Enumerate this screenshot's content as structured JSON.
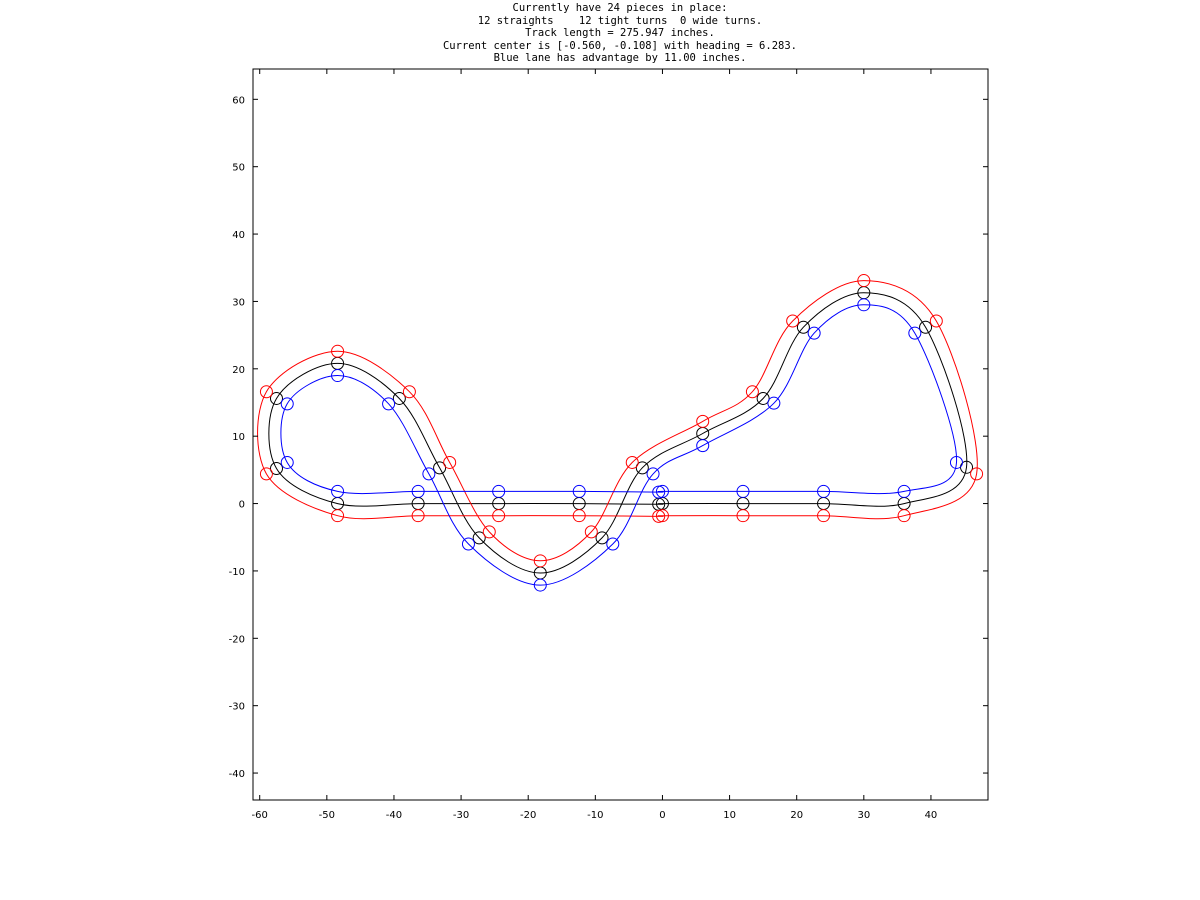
{
  "chart_data": {
    "type": "line",
    "title_lines": [
      "Currently have 24 pieces in place:",
      "12 straights    12 tight turns  0 wide turns.",
      "Track length = 275.947 inches.",
      "Current center is [-0.560, -0.108] with heading = 6.283.",
      "Blue lane has advantage by 11.00 inches."
    ],
    "xlabel": "",
    "ylabel": "",
    "xlim": [
      -61,
      48.5
    ],
    "ylim": [
      -44,
      64.5
    ],
    "x_ticks": [
      -60,
      -50,
      -40,
      -30,
      -20,
      -10,
      0,
      10,
      20,
      30,
      40
    ],
    "y_ticks": [
      -40,
      -30,
      -20,
      -10,
      0,
      10,
      20,
      30,
      40,
      50,
      60
    ],
    "grid": false,
    "legend": "none",
    "markers": "open circles at track-piece joints",
    "series": [
      {
        "color": "#000000",
        "center": [
          [
            0,
            0
          ],
          [
            12,
            0
          ],
          [
            24,
            0
          ],
          [
            36,
            0
          ],
          [
            45.3,
            5.38
          ],
          [
            39.2,
            26.17
          ],
          [
            30,
            31.3
          ],
          [
            21,
            26.17
          ],
          [
            15,
            15.6
          ],
          [
            6,
            10.4
          ],
          [
            -3,
            5.3
          ],
          [
            -9,
            -5.1
          ],
          [
            -18.2,
            -10.3
          ],
          [
            -27.3,
            -5.1
          ],
          [
            -33.2,
            5.3
          ],
          [
            -39.2,
            15.6
          ],
          [
            -48.4,
            20.8
          ],
          [
            -57.5,
            15.6
          ],
          [
            -57.5,
            5.2
          ],
          [
            -48.4,
            0
          ],
          [
            -36.4,
            0
          ],
          [
            -24.4,
            0
          ],
          [
            -12.4,
            0
          ],
          [
            -0.56,
            -0.108
          ]
        ]
      },
      {
        "color": "#ff0000",
        "center": [
          [
            0,
            -1.8
          ],
          [
            12,
            -1.8
          ],
          [
            24,
            -1.8
          ],
          [
            36,
            -1.8
          ],
          [
            46.8,
            4.4
          ],
          [
            40.8,
            27.1
          ],
          [
            30,
            33.1
          ],
          [
            19.4,
            27.1
          ],
          [
            13.4,
            16.6
          ],
          [
            6,
            12.2
          ],
          [
            -4.5,
            6.1
          ],
          [
            -10.6,
            -4.2
          ],
          [
            -18.2,
            -8.5
          ],
          [
            -25.8,
            -4.2
          ],
          [
            -31.7,
            6.1
          ],
          [
            -37.7,
            16.6
          ],
          [
            -48.4,
            22.6
          ],
          [
            -59,
            16.6
          ],
          [
            -59,
            4.4
          ],
          [
            -48.4,
            -1.8
          ],
          [
            -36.4,
            -1.8
          ],
          [
            -24.4,
            -1.8
          ],
          [
            -12.4,
            -1.8
          ],
          [
            -0.56,
            -1.9
          ]
        ]
      },
      {
        "color": "#0000ff",
        "center": [
          [
            0,
            1.8
          ],
          [
            12,
            1.8
          ],
          [
            24,
            1.8
          ],
          [
            36,
            1.8
          ],
          [
            43.8,
            6.1
          ],
          [
            37.6,
            25.3
          ],
          [
            30,
            29.5
          ],
          [
            22.6,
            25.3
          ],
          [
            16.6,
            14.9
          ],
          [
            6,
            8.6
          ],
          [
            -1.4,
            4.4
          ],
          [
            -7.4,
            -6
          ],
          [
            -18.2,
            -12.1
          ],
          [
            -28.9,
            -6
          ],
          [
            -34.8,
            4.4
          ],
          [
            -40.8,
            14.8
          ],
          [
            -48.4,
            19
          ],
          [
            -55.9,
            14.8
          ],
          [
            -55.9,
            6.1
          ],
          [
            -48.4,
            1.8
          ],
          [
            -36.4,
            1.8
          ],
          [
            -24.4,
            1.8
          ],
          [
            -12.4,
            1.8
          ],
          [
            -0.56,
            1.7
          ]
        ]
      }
    ]
  }
}
